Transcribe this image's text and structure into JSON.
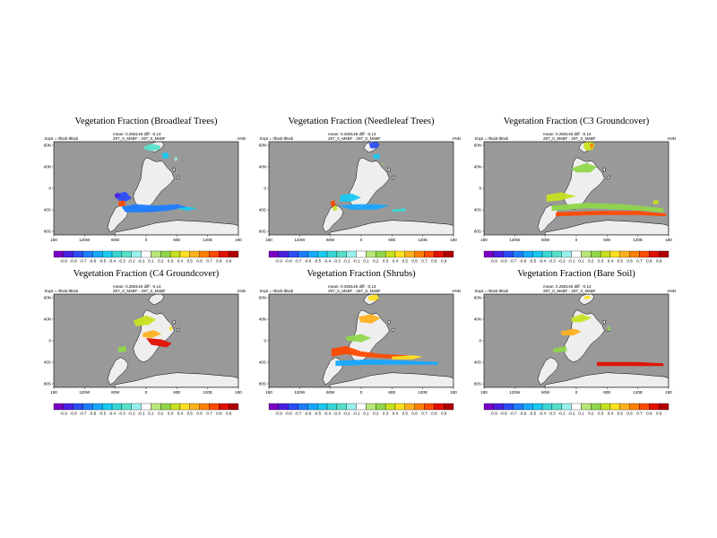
{
  "figure": {
    "lon_ticks": [
      "180",
      "120W",
      "60W",
      "0",
      "60E",
      "120E",
      "180"
    ],
    "lat_ticks": [
      "60N",
      "40N",
      "0",
      "40S",
      "80S"
    ],
    "colorbar": {
      "labels": [
        "-0.9",
        "-0.8",
        "-0.7",
        "-0.6",
        "-0.5",
        "-0.4",
        "-0.3",
        "-0.2",
        "-0.1",
        "0.1",
        "0.2",
        "0.3",
        "0.4",
        "0.5",
        "0.6",
        "0.7",
        "0.8",
        "0.9"
      ],
      "colors": [
        "#7a00c4",
        "#4a1fe0",
        "#2b4cf5",
        "#1e7dff",
        "#17a8ff",
        "#19c9f0",
        "#3ad6d6",
        "#58e0c8",
        "#9af0f0",
        "#ffffff",
        "#b8e67a",
        "#8fd64a",
        "#c8e020",
        "#ffe020",
        "#ffb020",
        "#ff8000",
        "#ff4a00",
        "#e01000",
        "#b00000"
      ]
    },
    "colors": {
      "ocean": "#999999",
      "land": "#eeeeee",
      "coast": "#000000"
    }
  },
  "panels": [
    {
      "title": "Vegetation Fraction (Broadleaf Trees)",
      "stats": "mean: 0.258146  diff: -0.14",
      "expt": "Expt = rlEab-tlEab",
      "code": "297_0_MsBF - 297_0_MsBF",
      "season": "ANN"
    },
    {
      "title": "Vegetation Fraction (Needleleaf Trees)",
      "stats": "mean: 0.258146  diff: -0.14",
      "expt": "Expt = rlEab-tlEab",
      "code": "297_0_MsBF - 297_0_MsBF",
      "season": "ANN"
    },
    {
      "title": "Vegetation Fraction (C3 Groundcover)",
      "stats": "mean: 0.258146  diff: -0.14",
      "expt": "Expt = rlEab-tlEab",
      "code": "297_0_MsBF - 297_0_MsBF",
      "season": "ANN"
    },
    {
      "title": "Vegetation Fraction (C4 Groundcover)",
      "stats": "mean: 0.258146  diff: -0.14",
      "expt": "Expt = rlEab-tlEab",
      "code": "297_0_MsBF - 297_0_MsBF",
      "season": "ANN"
    },
    {
      "title": "Vegetation Fraction (Shrubs)",
      "stats": "mean: 0.258146  diff: -0.14",
      "expt": "Expt = rlEab-tlEab",
      "code": "297_0_MsBF - 297_0_MsBF",
      "season": "ANN"
    },
    {
      "title": "Vegetation Fraction (Bare Soil)",
      "stats": "mean: 0.258146  diff: -0.14",
      "expt": "Expt = rlEab-tlEab",
      "code": "297_0_MsBF - 297_0_MsBF",
      "season": "ANN"
    }
  ],
  "chart_data": [
    {
      "type": "heatmap",
      "title": "Vegetation Fraction (Broadleaf Trees)",
      "x_range": [
        "180",
        "180"
      ],
      "y_range": [
        "80S",
        "60N"
      ],
      "color_scale": [
        -0.9,
        0.9
      ],
      "features": [
        {
          "region": "northern Africa / Mediterranean",
          "class": "-0.2"
        },
        {
          "region": "Europe fringe",
          "class": "-0.3"
        },
        {
          "region": "eastern Asia",
          "class": "-0.2"
        },
        {
          "region": "South America southern tip",
          "class": "-0.6"
        },
        {
          "region": "Southern Ocean coastal band",
          "class": "-0.6"
        },
        {
          "region": "South America southern tip",
          "class": "0.8"
        }
      ]
    },
    {
      "type": "heatmap",
      "title": "Vegetation Fraction (Needleleaf Trees)",
      "x_range": [
        "180",
        "180"
      ],
      "y_range": [
        "80S",
        "60N"
      ],
      "color_scale": [
        -0.9,
        0.9
      ],
      "features": [
        {
          "region": "Scandinavia / northern Europe",
          "class": "-0.6"
        },
        {
          "region": "Southern Ocean coastal band",
          "class": "-0.4"
        },
        {
          "region": "South America southern tip",
          "class": "0.8"
        },
        {
          "region": "South America",
          "class": "0.4"
        }
      ]
    },
    {
      "type": "heatmap",
      "title": "Vegetation Fraction (C3 Groundcover)",
      "x_range": [
        "180",
        "180"
      ],
      "y_range": [
        "80S",
        "60N"
      ],
      "color_scale": [
        -0.9,
        0.9
      ],
      "features": [
        {
          "region": "Europe / Scandinavia",
          "class": "0.4"
        },
        {
          "region": "northern Africa",
          "class": "0.3"
        },
        {
          "region": "Southern Ocean coastal band",
          "class": "0.3"
        },
        {
          "region": "Antarctic coast",
          "class": "0.8"
        }
      ]
    },
    {
      "type": "heatmap",
      "title": "Vegetation Fraction (C4 Groundcover)",
      "x_range": [
        "180",
        "180"
      ],
      "y_range": [
        "80S",
        "60N"
      ],
      "color_scale": [
        -0.9,
        0.9
      ],
      "features": [
        {
          "region": "northern Africa",
          "class": "0.4"
        },
        {
          "region": "central Africa band",
          "class": "0.8"
        },
        {
          "region": "South America",
          "class": "0.3"
        }
      ]
    },
    {
      "type": "heatmap",
      "title": "Vegetation Fraction (Shrubs)",
      "x_range": [
        "180",
        "180"
      ],
      "y_range": [
        "80S",
        "60N"
      ],
      "color_scale": [
        -0.9,
        0.9
      ],
      "features": [
        {
          "region": "Europe",
          "class": "0.4"
        },
        {
          "region": "northern Africa",
          "class": "0.5"
        },
        {
          "region": "South America / southern band",
          "class": "0.8"
        },
        {
          "region": "Southern Ocean coastal band",
          "class": "-0.6"
        }
      ]
    },
    {
      "type": "heatmap",
      "title": "Vegetation Fraction (Bare Soil)",
      "x_range": [
        "180",
        "180"
      ],
      "y_range": [
        "80S",
        "60N"
      ],
      "color_scale": [
        -0.9,
        0.9
      ],
      "features": [
        {
          "region": "Europe",
          "class": "0.4"
        },
        {
          "region": "northern Africa",
          "class": "0.5"
        },
        {
          "region": "Antarctic coast",
          "class": "0.8"
        }
      ]
    }
  ]
}
